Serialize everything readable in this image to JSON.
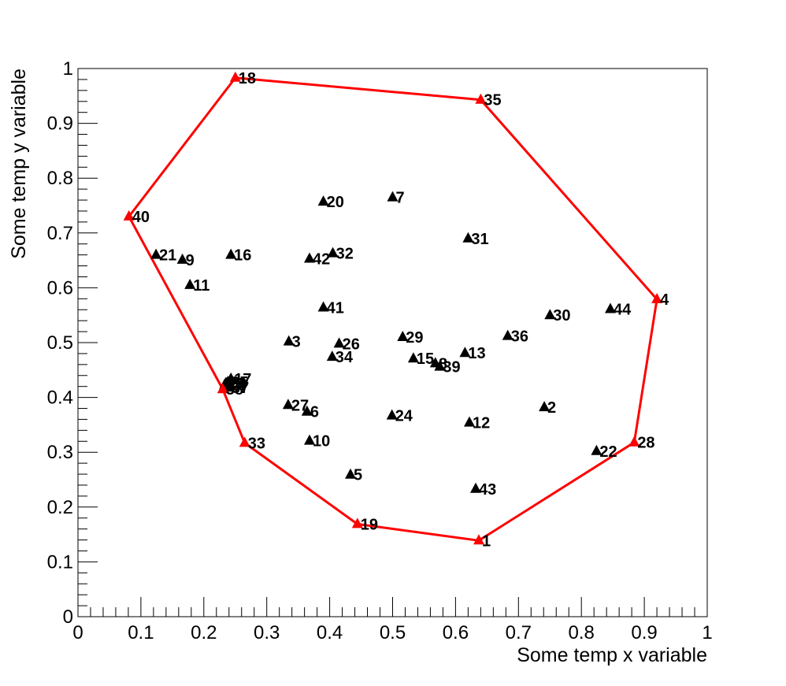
{
  "chart_data": {
    "type": "scatter",
    "xlabel": "Some temp x variable",
    "ylabel": "Some temp y variable",
    "xlim": [
      0,
      1
    ],
    "ylim": [
      0,
      1
    ],
    "x_ticks": [
      "0",
      "0.1",
      "0.2",
      "0.3",
      "0.4",
      "0.5",
      "0.6",
      "0.7",
      "0.8",
      "0.9",
      "1"
    ],
    "y_ticks": [
      "0",
      "0.1",
      "0.2",
      "0.3",
      "0.4",
      "0.5",
      "0.6",
      "0.7",
      "0.8",
      "0.9",
      "1"
    ],
    "marker_color": "#000000",
    "hull_color": "#ff0000",
    "points": [
      {
        "id": "1",
        "x": 0.637,
        "y": 0.139
      },
      {
        "id": "2",
        "x": 0.741,
        "y": 0.382
      },
      {
        "id": "3",
        "x": 0.335,
        "y": 0.502
      },
      {
        "id": "4",
        "x": 0.92,
        "y": 0.579
      },
      {
        "id": "5",
        "x": 0.433,
        "y": 0.259
      },
      {
        "id": "6",
        "x": 0.364,
        "y": 0.374
      },
      {
        "id": "7",
        "x": 0.5,
        "y": 0.765
      },
      {
        "id": "8",
        "x": 0.568,
        "y": 0.462
      },
      {
        "id": "9",
        "x": 0.166,
        "y": 0.651
      },
      {
        "id": "10",
        "x": 0.368,
        "y": 0.321
      },
      {
        "id": "11",
        "x": 0.178,
        "y": 0.605
      },
      {
        "id": "12",
        "x": 0.622,
        "y": 0.354
      },
      {
        "id": "13",
        "x": 0.615,
        "y": 0.481
      },
      {
        "id": "14",
        "x": 0.233,
        "y": 0.423
      },
      {
        "id": "15",
        "x": 0.533,
        "y": 0.471
      },
      {
        "id": "16",
        "x": 0.243,
        "y": 0.66
      },
      {
        "id": "17",
        "x": 0.243,
        "y": 0.434
      },
      {
        "id": "18",
        "x": 0.25,
        "y": 0.983
      },
      {
        "id": "19",
        "x": 0.444,
        "y": 0.169
      },
      {
        "id": "20",
        "x": 0.39,
        "y": 0.757
      },
      {
        "id": "21",
        "x": 0.124,
        "y": 0.66
      },
      {
        "id": "22",
        "x": 0.824,
        "y": 0.302
      },
      {
        "id": "23",
        "x": 0.235,
        "y": 0.426
      },
      {
        "id": "24",
        "x": 0.499,
        "y": 0.367
      },
      {
        "id": "25",
        "x": 0.238,
        "y": 0.428
      },
      {
        "id": "26",
        "x": 0.415,
        "y": 0.498
      },
      {
        "id": "27",
        "x": 0.334,
        "y": 0.386
      },
      {
        "id": "28",
        "x": 0.884,
        "y": 0.318
      },
      {
        "id": "29",
        "x": 0.516,
        "y": 0.51
      },
      {
        "id": "30",
        "x": 0.75,
        "y": 0.55
      },
      {
        "id": "31",
        "x": 0.62,
        "y": 0.69
      },
      {
        "id": "32",
        "x": 0.405,
        "y": 0.663
      },
      {
        "id": "33",
        "x": 0.265,
        "y": 0.317
      },
      {
        "id": "34",
        "x": 0.404,
        "y": 0.474
      },
      {
        "id": "35",
        "x": 0.64,
        "y": 0.943
      },
      {
        "id": "36",
        "x": 0.683,
        "y": 0.512
      },
      {
        "id": "37",
        "x": 0.239,
        "y": 0.418
      },
      {
        "id": "38",
        "x": 0.23,
        "y": 0.415
      },
      {
        "id": "39",
        "x": 0.575,
        "y": 0.456
      },
      {
        "id": "40",
        "x": 0.081,
        "y": 0.73
      },
      {
        "id": "41",
        "x": 0.39,
        "y": 0.564
      },
      {
        "id": "42",
        "x": 0.368,
        "y": 0.653
      },
      {
        "id": "43",
        "x": 0.632,
        "y": 0.233
      },
      {
        "id": "44",
        "x": 0.846,
        "y": 0.561
      }
    ],
    "hull": [
      "18",
      "35",
      "4",
      "28",
      "1",
      "19",
      "33",
      "38",
      "40",
      "18"
    ]
  }
}
